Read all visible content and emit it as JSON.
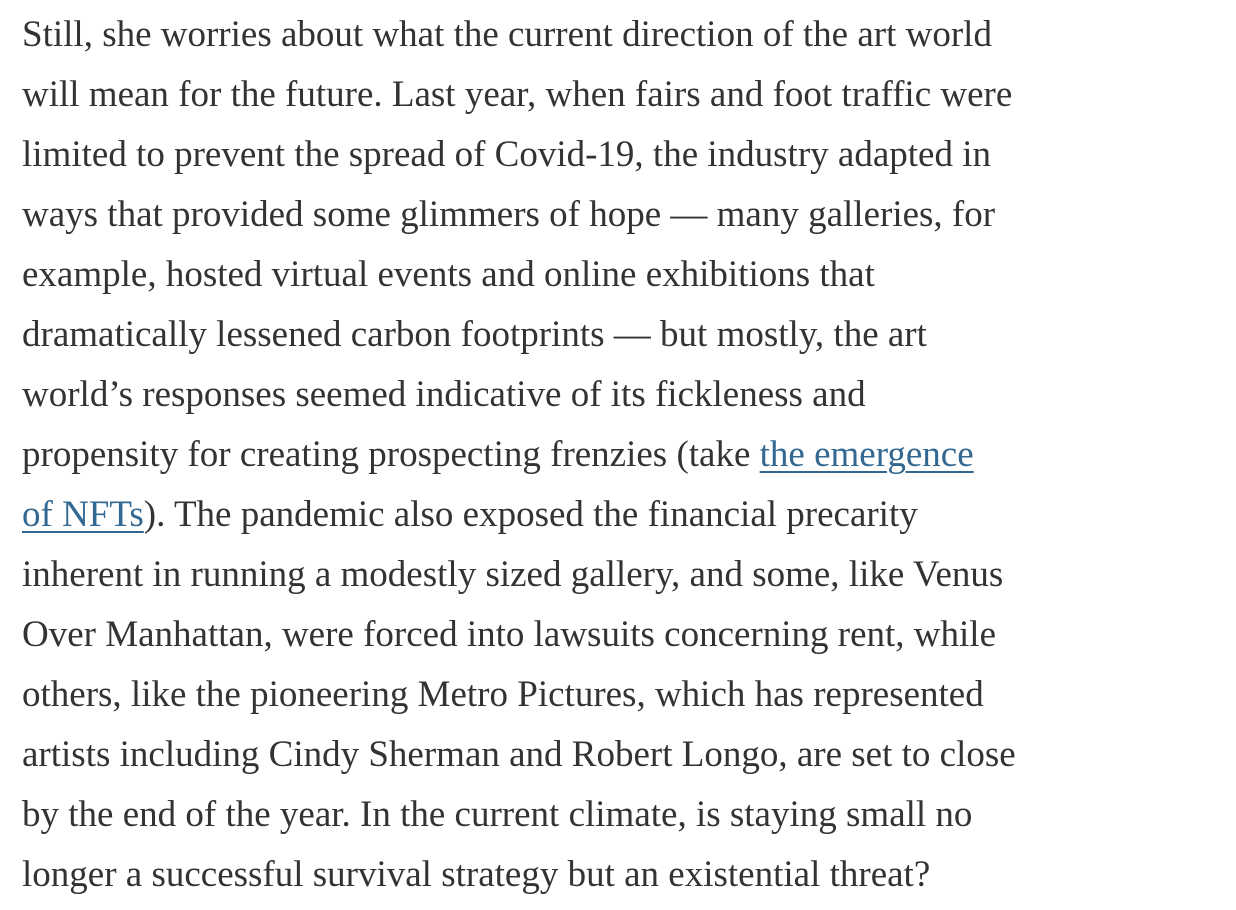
{
  "article": {
    "paragraph": {
      "line1": "Still, she worries about what the current direction of the art world",
      "line2": "will mean for the future. Last year, when fairs and foot traffic were",
      "line3": "limited to prevent the spread of Covid-19, the industry adapted in",
      "line4": "ways that provided some glimmers of hope — many galleries, for",
      "line5": "example, hosted virtual events and online exhibitions that",
      "line6": "dramatically lessened carbon footprints — but mostly, the art",
      "line7": "world’s responses seemed indicative of its fickleness and",
      "line8_before_link": "propensity for creating prospecting frenzies (take ",
      "link_part1": "the emergence",
      "link_part2": "of NFTs",
      "line9_after_link": "). The pandemic also exposed the financial precarity",
      "line10": "inherent in running a modestly sized gallery, and some, like Venus",
      "line11": "Over Manhattan, were forced into lawsuits concerning rent, while",
      "line12": "others, like the pioneering Metro Pictures, which has represented",
      "line13": "artists including Cindy Sherman and Robert Longo, are set to close",
      "line14": "by the end of the year. In the current climate, is staying small no",
      "line15": "longer a successful survival strategy but an existential threat?"
    },
    "colors": {
      "text": "#333333",
      "link": "#326891",
      "background": "#ffffff"
    }
  }
}
